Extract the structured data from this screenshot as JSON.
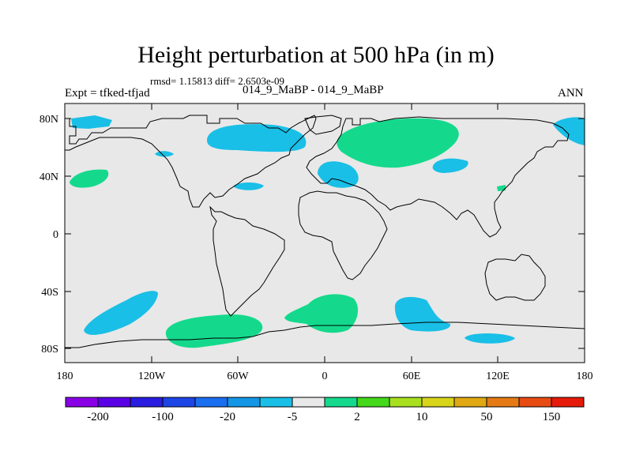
{
  "title": "Height perturbation at 500 hPa (in m)",
  "stats": "rmsd= 1.15813 diff= 2.6503e-09",
  "left_label": "Expt = tfked-tfjad",
  "subtitle": "014_9_MaBP - 014_9_MaBP",
  "season": "ANN",
  "lat_ticks": [
    "80N",
    "40N",
    "0",
    "40S",
    "80S"
  ],
  "lon_ticks": [
    "180",
    "120W",
    "60W",
    "0",
    "60E",
    "120E",
    "180"
  ],
  "colorbar": {
    "colors": [
      "#8a00e6",
      "#5a00e6",
      "#2a1ce0",
      "#1d45e6",
      "#1a6ef0",
      "#1396e6",
      "#19bfe6",
      "#e8e8e8",
      "#14d98c",
      "#43d81a",
      "#a8e020",
      "#d8d41a",
      "#e0a812",
      "#e57a14",
      "#e84b12",
      "#e61a0a"
    ],
    "labels": [
      "-200",
      "-100",
      "-20",
      "-5",
      "2",
      "10",
      "50",
      "150"
    ]
  },
  "colors": {
    "map_background": "#e8e8e8",
    "negative_anomaly": "#19bfe6",
    "positive_anomaly": "#14d98c",
    "coastline": "#000000"
  }
}
